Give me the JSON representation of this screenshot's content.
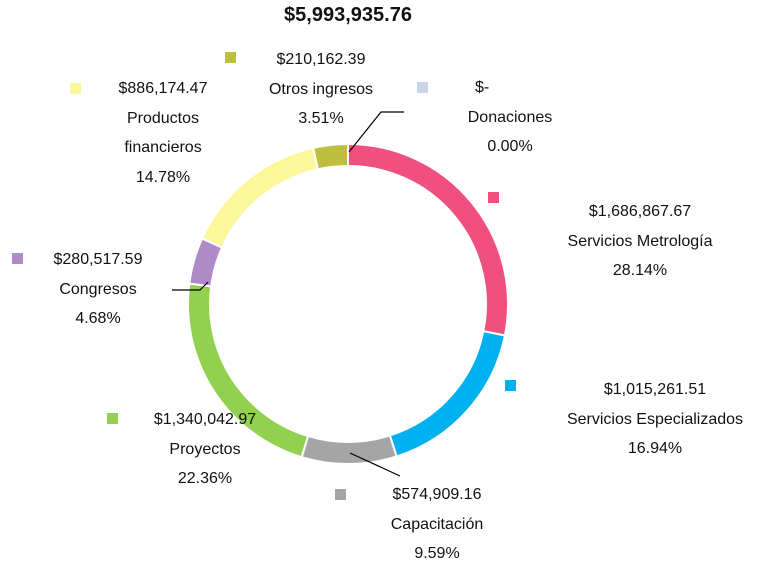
{
  "chart_data": {
    "type": "donut",
    "title": "$5,993,935.76",
    "categories": [
      "Servicios Metrología",
      "Servicios Especializados",
      "Capacitación",
      "Proyectos",
      "Congresos",
      "Productos financieros",
      "Otros ingresos",
      "Donaciones"
    ],
    "values": [
      1686867.67,
      1015261.51,
      574909.16,
      1340042.97,
      280517.59,
      886174.47,
      210162.39,
      0
    ],
    "value_labels": [
      "$1,686,867.67",
      "$1,015,261.51",
      "$574,909.16",
      "$1,340,042.97",
      "$280,517.59",
      "$886,174.47",
      "$210,162.39",
      "$-"
    ],
    "percentages": [
      28.14,
      16.94,
      9.59,
      22.36,
      4.68,
      14.78,
      3.51,
      0.0
    ],
    "percentage_labels": [
      "28.14%",
      "16.94%",
      "9.59%",
      "22.36%",
      "4.68%",
      "14.78%",
      "3.51%",
      "0.00%"
    ],
    "colors": [
      "#f0507f",
      "#00b0f0",
      "#a5a5a5",
      "#92d050",
      "#b08ac8",
      "#fbf79a",
      "#bfbf3f",
      "#c9d4e8"
    ]
  }
}
